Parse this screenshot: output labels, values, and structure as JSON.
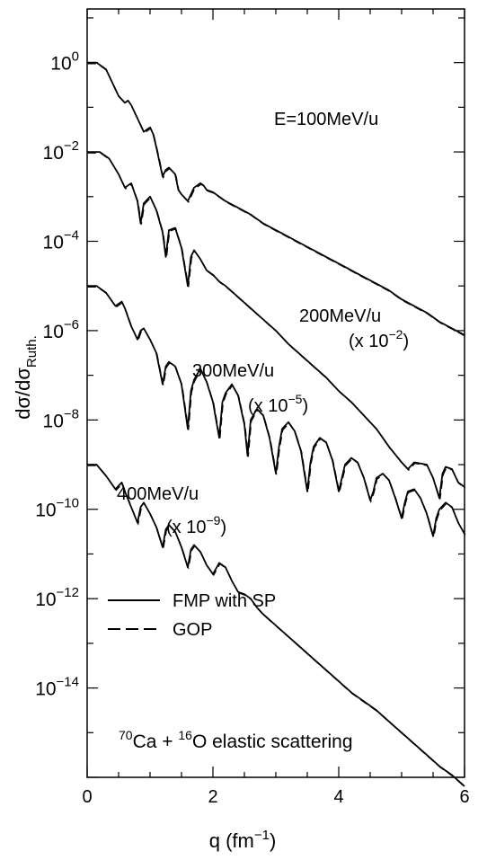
{
  "chart_data": {
    "type": "line",
    "xlabel_main": "q (fm",
    "xlabel_exp": "−1",
    "xlabel_close": ")",
    "ylabel_main": "dσ/dσ",
    "ylabel_sub": "Ruth.",
    "xlim": [
      0,
      6
    ],
    "ylim_log10": [
      -16,
      1.2
    ],
    "y_scale": "log",
    "x_ticks": [
      0,
      2,
      4,
      6
    ],
    "y_tick_base": "10",
    "y_tick_exponents": [
      "0",
      "−2",
      "−4",
      "−6",
      "−8",
      "−10",
      "−12",
      "−14"
    ],
    "y_tick_values_log10": [
      0,
      -2,
      -4,
      -6,
      -8,
      -10,
      -12,
      -14
    ],
    "curve_labels": [
      {
        "text": "E=100MeV/u",
        "scale": ""
      },
      {
        "text": "200MeV/u",
        "scale_prefix": "(x 10",
        "scale_exp": "−2",
        "scale_suffix": ")"
      },
      {
        "text": "300MeV/u",
        "scale_prefix": "(x 10",
        "scale_exp": "−5",
        "scale_suffix": ")"
      },
      {
        "text": "400MeV/u",
        "scale_prefix": "(x 10",
        "scale_exp": "−9",
        "scale_suffix": ")"
      }
    ],
    "legend": {
      "placement": "bottom-left",
      "entries": [
        {
          "label": "FMP with SP",
          "style": "solid"
        },
        {
          "label": "GOP",
          "style": "dashed"
        }
      ]
    },
    "reaction_label": {
      "sup1": "70",
      "part1": "Ca + ",
      "sup2": "16",
      "part2": "O elastic scattering"
    },
    "series": [
      {
        "x": [
          0.0,
          0.15,
          0.3,
          0.4,
          0.5,
          0.6,
          0.65,
          0.7,
          0.8,
          0.9,
          1.0,
          1.05,
          1.1,
          1.2,
          1.25,
          1.3,
          1.4,
          1.45,
          1.5,
          1.6,
          1.65,
          1.7,
          1.8,
          1.85,
          1.9,
          2.0,
          2.1,
          2.2,
          2.4,
          2.6,
          2.8,
          3.0,
          3.2,
          3.4,
          3.6,
          3.8,
          4.0,
          4.2,
          4.4,
          4.6,
          4.8,
          5.0,
          5.2,
          5.4,
          5.6,
          5.8,
          6.0
        ],
        "y_log10": [
          0.0,
          0.0,
          -0.15,
          -0.45,
          -0.75,
          -0.9,
          -0.85,
          -0.95,
          -1.25,
          -1.55,
          -1.45,
          -1.6,
          -1.9,
          -2.55,
          -2.4,
          -2.35,
          -2.5,
          -2.85,
          -2.95,
          -3.1,
          -2.95,
          -2.8,
          -2.7,
          -2.75,
          -2.85,
          -2.9,
          -3.0,
          -3.1,
          -3.25,
          -3.4,
          -3.6,
          -3.75,
          -3.9,
          -4.05,
          -4.2,
          -4.35,
          -4.5,
          -4.65,
          -4.8,
          -4.95,
          -5.1,
          -5.3,
          -5.45,
          -5.6,
          -5.8,
          -5.95,
          -6.1
        ]
      },
      {
        "x": [
          0.0,
          0.2,
          0.35,
          0.5,
          0.6,
          0.7,
          0.8,
          0.85,
          0.9,
          1.0,
          1.1,
          1.2,
          1.25,
          1.3,
          1.4,
          1.5,
          1.6,
          1.65,
          1.7,
          1.8,
          1.9,
          2.0,
          2.1,
          2.2,
          2.4,
          2.6,
          2.8,
          3.0,
          3.2,
          3.4,
          3.6,
          3.8,
          4.0,
          4.2,
          4.4,
          4.6,
          4.8,
          5.0,
          5.1,
          5.2,
          5.4,
          5.5,
          5.6,
          5.65,
          5.7,
          5.8,
          5.9,
          6.0
        ],
        "y_log10": [
          -2.0,
          -2.0,
          -2.15,
          -2.5,
          -2.8,
          -2.7,
          -3.1,
          -3.6,
          -3.15,
          -3.0,
          -3.3,
          -3.8,
          -4.35,
          -3.75,
          -3.7,
          -4.15,
          -5.0,
          -4.35,
          -4.2,
          -4.4,
          -4.65,
          -4.75,
          -4.9,
          -5.0,
          -5.25,
          -5.5,
          -5.75,
          -6.0,
          -6.3,
          -6.55,
          -6.8,
          -7.05,
          -7.35,
          -7.6,
          -7.9,
          -8.2,
          -8.6,
          -8.95,
          -9.1,
          -8.95,
          -9.0,
          -9.3,
          -9.75,
          -9.2,
          -9.05,
          -9.1,
          -9.4,
          -9.5
        ]
      },
      {
        "x": [
          0.0,
          0.15,
          0.3,
          0.45,
          0.55,
          0.6,
          0.7,
          0.8,
          0.85,
          0.9,
          1.0,
          1.1,
          1.2,
          1.25,
          1.3,
          1.4,
          1.5,
          1.6,
          1.65,
          1.7,
          1.8,
          1.9,
          2.0,
          2.1,
          2.15,
          2.2,
          2.3,
          2.4,
          2.5,
          2.55,
          2.6,
          2.7,
          2.8,
          2.9,
          3.0,
          3.05,
          3.1,
          3.2,
          3.3,
          3.4,
          3.5,
          3.55,
          3.6,
          3.7,
          3.8,
          3.9,
          4.0,
          4.05,
          4.1,
          4.2,
          4.3,
          4.4,
          4.5,
          4.55,
          4.6,
          4.7,
          4.8,
          4.9,
          5.0,
          5.05,
          5.1,
          5.2,
          5.3,
          5.4,
          5.5,
          5.55,
          5.6,
          5.7,
          5.8,
          5.9,
          6.0
        ],
        "y_log10": [
          -5.0,
          -5.0,
          -5.15,
          -5.45,
          -5.35,
          -5.5,
          -5.9,
          -6.2,
          -6.0,
          -5.95,
          -6.2,
          -6.5,
          -7.2,
          -6.8,
          -6.7,
          -6.8,
          -7.2,
          -8.2,
          -7.35,
          -7.1,
          -6.85,
          -7.15,
          -7.6,
          -8.4,
          -7.6,
          -7.4,
          -7.2,
          -7.45,
          -8.1,
          -8.8,
          -8.0,
          -7.75,
          -7.9,
          -8.4,
          -9.2,
          -8.6,
          -8.2,
          -8.05,
          -8.25,
          -8.7,
          -9.6,
          -8.95,
          -8.6,
          -8.4,
          -8.5,
          -8.9,
          -9.6,
          -9.3,
          -9.0,
          -8.85,
          -8.95,
          -9.3,
          -9.8,
          -9.6,
          -9.3,
          -9.2,
          -9.35,
          -9.75,
          -10.2,
          -9.85,
          -9.6,
          -9.55,
          -9.75,
          -10.1,
          -10.6,
          -10.2,
          -10.0,
          -9.85,
          -9.95,
          -10.3,
          -10.55
        ]
      },
      {
        "x": [
          0.0,
          0.15,
          0.3,
          0.45,
          0.55,
          0.6,
          0.7,
          0.8,
          0.85,
          0.9,
          1.0,
          1.1,
          1.2,
          1.25,
          1.3,
          1.4,
          1.5,
          1.6,
          1.65,
          1.7,
          1.8,
          1.9,
          2.0,
          2.1,
          2.2,
          2.3,
          2.4,
          2.5,
          2.6,
          2.7,
          2.8,
          3.0,
          3.2,
          3.4,
          3.6,
          3.8,
          4.0,
          4.2,
          4.4,
          4.6,
          4.8,
          5.0,
          5.2,
          5.4,
          5.6,
          5.8,
          6.0
        ],
        "y_log10": [
          -9.0,
          -9.0,
          -9.25,
          -9.55,
          -9.4,
          -9.6,
          -9.95,
          -10.3,
          -9.95,
          -9.85,
          -10.1,
          -10.4,
          -10.85,
          -10.45,
          -10.35,
          -10.5,
          -10.85,
          -11.3,
          -10.9,
          -10.8,
          -10.95,
          -11.25,
          -11.45,
          -11.2,
          -11.3,
          -11.6,
          -11.85,
          -11.9,
          -12.0,
          -12.2,
          -12.35,
          -12.6,
          -12.85,
          -13.1,
          -13.35,
          -13.6,
          -13.85,
          -14.1,
          -14.3,
          -14.5,
          -14.75,
          -15.0,
          -15.25,
          -15.5,
          -15.75,
          -15.95,
          -16.2
        ]
      }
    ]
  }
}
